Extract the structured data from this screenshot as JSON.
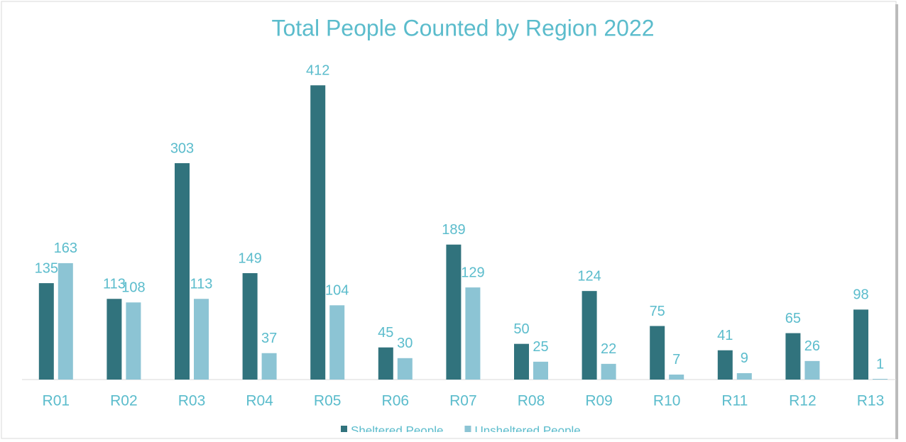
{
  "chart_data": {
    "type": "bar",
    "title": "Total People Counted by Region 2022",
    "categories": [
      "R01",
      "R02",
      "R03",
      "R04",
      "R05",
      "R06",
      "R07",
      "R08",
      "R09",
      "R10",
      "R11",
      "R12",
      "R13"
    ],
    "series": [
      {
        "name": "Sheltered People",
        "color": "#31737d",
        "values": [
          135,
          113,
          303,
          149,
          412,
          45,
          189,
          50,
          124,
          75,
          41,
          65,
          98
        ]
      },
      {
        "name": "Unsheltered People",
        "color": "#8cc4d4",
        "values": [
          163,
          108,
          113,
          37,
          104,
          30,
          129,
          25,
          22,
          7,
          9,
          26,
          1
        ]
      }
    ],
    "ylim": [
      0,
      450
    ],
    "legend": "bottom"
  }
}
